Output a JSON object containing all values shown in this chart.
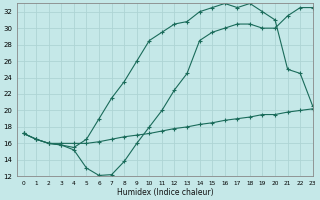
{
  "xlabel": "Humidex (Indice chaleur)",
  "bg_color": "#c5e8e8",
  "grid_color": "#aed4d4",
  "line_color": "#1a6b5a",
  "xlim": [
    -0.5,
    23
  ],
  "ylim": [
    12,
    33
  ],
  "xticks": [
    0,
    1,
    2,
    3,
    4,
    5,
    6,
    7,
    8,
    9,
    10,
    11,
    12,
    13,
    14,
    15,
    16,
    17,
    18,
    19,
    20,
    21,
    22,
    23
  ],
  "yticks": [
    12,
    14,
    16,
    18,
    20,
    22,
    24,
    26,
    28,
    30,
    32
  ],
  "curve1_x": [
    0,
    1,
    2,
    3,
    4,
    5,
    6,
    7,
    8,
    9,
    10,
    11,
    12,
    13,
    14,
    15,
    16,
    17,
    18,
    19,
    20,
    21,
    22,
    23
  ],
  "curve1_y": [
    17.2,
    16.5,
    16.0,
    15.8,
    15.2,
    13.0,
    12.1,
    12.2,
    13.8,
    16.0,
    18.0,
    20.0,
    22.5,
    24.5,
    28.5,
    29.5,
    30.0,
    30.5,
    30.5,
    30.0,
    30.0,
    31.5,
    32.5,
    32.5
  ],
  "curve2_x": [
    0,
    1,
    2,
    3,
    4,
    5,
    6,
    7,
    8,
    9,
    10,
    11,
    12,
    13,
    14,
    15,
    16,
    17,
    18,
    19,
    20,
    21,
    22,
    23
  ],
  "curve2_y": [
    17.2,
    16.5,
    16.0,
    15.8,
    15.5,
    16.5,
    19.0,
    21.5,
    23.5,
    26.0,
    28.5,
    29.5,
    30.5,
    30.8,
    32.0,
    32.5,
    33.0,
    32.5,
    33.0,
    32.0,
    31.0,
    25.0,
    24.5,
    20.5
  ],
  "curve3_x": [
    0,
    1,
    2,
    3,
    4,
    5,
    6,
    7,
    8,
    9,
    10,
    11,
    12,
    13,
    14,
    15,
    16,
    17,
    18,
    19,
    20,
    21,
    22,
    23
  ],
  "curve3_y": [
    17.2,
    16.5,
    16.0,
    16.0,
    16.0,
    16.0,
    16.2,
    16.5,
    16.8,
    17.0,
    17.2,
    17.5,
    17.8,
    18.0,
    18.3,
    18.5,
    18.8,
    19.0,
    19.2,
    19.5,
    19.5,
    19.8,
    20.0,
    20.2
  ]
}
